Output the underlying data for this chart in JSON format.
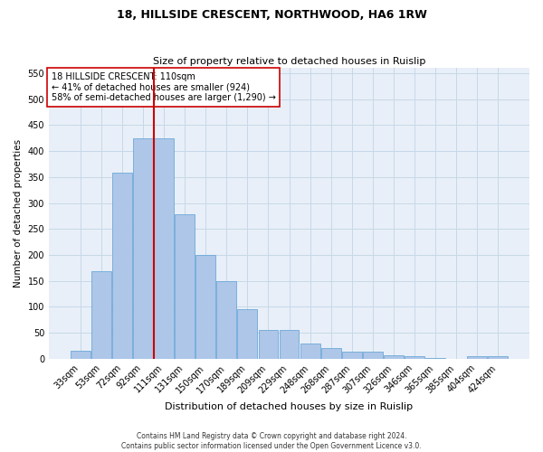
{
  "title": "18, HILLSIDE CRESCENT, NORTHWOOD, HA6 1RW",
  "subtitle": "Size of property relative to detached houses in Ruislip",
  "xlabel": "Distribution of detached houses by size in Ruislip",
  "ylabel": "Number of detached properties",
  "footer_line1": "Contains HM Land Registry data © Crown copyright and database right 2024.",
  "footer_line2": "Contains public sector information licensed under the Open Government Licence v3.0.",
  "categories": [
    "33sqm",
    "53sqm",
    "72sqm",
    "92sqm",
    "111sqm",
    "131sqm",
    "150sqm",
    "170sqm",
    "189sqm",
    "209sqm",
    "229sqm",
    "248sqm",
    "268sqm",
    "287sqm",
    "307sqm",
    "326sqm",
    "346sqm",
    "365sqm",
    "385sqm",
    "404sqm",
    "424sqm"
  ],
  "values": [
    15,
    168,
    358,
    425,
    425,
    278,
    200,
    149,
    96,
    55,
    55,
    29,
    20,
    14,
    14,
    6,
    5,
    2,
    0,
    5,
    5
  ],
  "bar_color": "#aec6e8",
  "bar_edge_color": "#5a9fd4",
  "grid_color": "#c8d8e8",
  "background_color": "#e8eff8",
  "annotation_text": "18 HILLSIDE CRESCENT: 110sqm\n← 41% of detached houses are smaller (924)\n58% of semi-detached houses are larger (1,290) →",
  "vline_color": "#cc0000",
  "annotation_box_color": "#ffffff",
  "annotation_box_edge": "#cc0000",
  "ylim": [
    0,
    560
  ],
  "yticks": [
    0,
    50,
    100,
    150,
    200,
    250,
    300,
    350,
    400,
    450,
    500,
    550
  ],
  "vline_index": 3.5
}
